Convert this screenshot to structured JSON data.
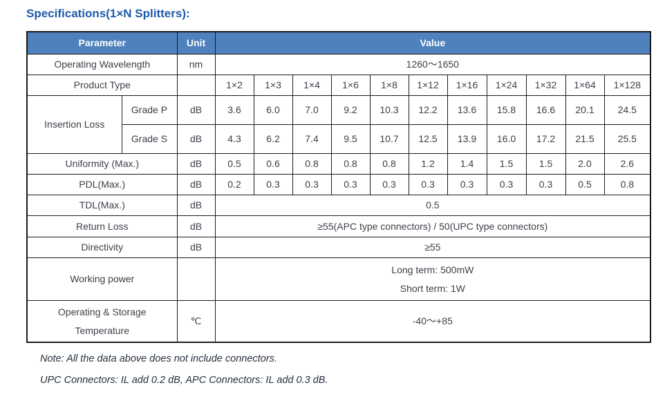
{
  "page": {
    "title": "Specifications(1×N Splitters):",
    "notes": [
      "Note: All the data above does not include connectors.",
      "UPC Connectors: IL add 0.2 dB, APC Connectors: IL add 0.3 dB."
    ]
  },
  "table": {
    "headers": {
      "parameter": "Parameter",
      "unit": "Unit",
      "value": "Value"
    },
    "operating_wavelength": {
      "label": "Operating Wavelength",
      "unit": "nm",
      "value": "1260～1650"
    },
    "product_type": {
      "label": "Product Type",
      "unit": "",
      "types": [
        "1×2",
        "1×3",
        "1×4",
        "1×6",
        "1×8",
        "1×12",
        "1×16",
        "1×24",
        "1×32",
        "1×64",
        "1×128"
      ]
    },
    "insertion_loss": {
      "label": "Insertion Loss",
      "rows": [
        {
          "grade": "Grade P",
          "unit": "dB",
          "values": [
            "3.6",
            "6.0",
            "7.0",
            "9.2",
            "10.3",
            "12.2",
            "13.6",
            "15.8",
            "16.6",
            "20.1",
            "24.5"
          ]
        },
        {
          "grade": "Grade S",
          "unit": "dB",
          "values": [
            "4.3",
            "6.2",
            "7.4",
            "9.5",
            "10.7",
            "12.5",
            "13.9",
            "16.0",
            "17.2",
            "21.5",
            "25.5"
          ]
        }
      ]
    },
    "uniformity": {
      "label": "Uniformity (Max.)",
      "unit": "dB",
      "values": [
        "0.5",
        "0.6",
        "0.8",
        "0.8",
        "0.8",
        "1.2",
        "1.4",
        "1.5",
        "1.5",
        "2.0",
        "2.6"
      ]
    },
    "pdl": {
      "label": "PDL(Max.)",
      "unit": "dB",
      "values": [
        "0.2",
        "0.3",
        "0.3",
        "0.3",
        "0.3",
        "0.3",
        "0.3",
        "0.3",
        "0.3",
        "0.5",
        "0.8"
      ]
    },
    "tdl": {
      "label": "TDL(Max.)",
      "unit": "dB",
      "value": "0.5"
    },
    "return_loss": {
      "label": "Return Loss",
      "unit": "dB",
      "value": "≥55(APC type connectors) / 50(UPC type connectors)"
    },
    "directivity": {
      "label": "Directivity",
      "unit": "dB",
      "value": "≥55"
    },
    "working_power": {
      "label": "Working power",
      "unit": "",
      "value_lines": [
        "Long term: 500mW",
        "Short term: 1W"
      ]
    },
    "temperature": {
      "label_lines": [
        "Operating & Storage",
        "Temperature"
      ],
      "unit": "℃",
      "value": "-40～+85"
    }
  },
  "colors": {
    "header_bg": "#4f81bd",
    "header_text": "#ffffff",
    "title_text": "#1f5aa9",
    "body_text": "#3a3f47",
    "border": "#1a1a1a"
  }
}
